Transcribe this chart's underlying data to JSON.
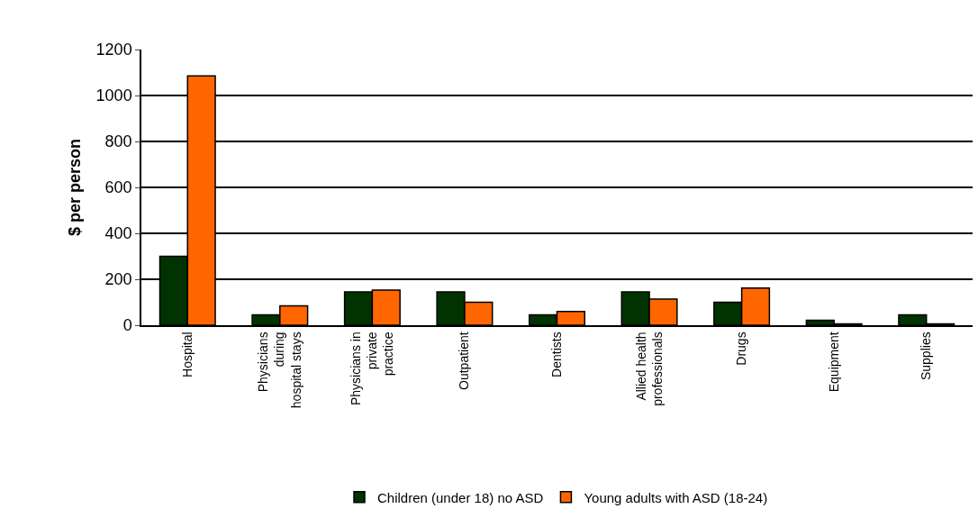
{
  "chart_data": {
    "type": "bar",
    "ylabel": "$ per person",
    "categories": [
      "Hospital",
      "Physicians during hospital stays",
      "Physicians in private practice",
      "Outpatient",
      "Dentists",
      "Allied health professionals",
      "Drugs",
      "Equipment",
      "Supplies"
    ],
    "series": [
      {
        "name": "Children (under 18) no ASD",
        "color": "#003300",
        "values": [
          300,
          45,
          145,
          145,
          45,
          145,
          100,
          22,
          45
        ]
      },
      {
        "name": "Young adults with ASD (18-24)",
        "color": "#ff6600",
        "values": [
          1085,
          84,
          153,
          100,
          60,
          114,
          162,
          6,
          6
        ]
      }
    ],
    "ylim": [
      0,
      1200
    ],
    "yticks": [
      0,
      200,
      400,
      600,
      800,
      1000,
      1200
    ],
    "grid": "y",
    "legend": "bottom"
  }
}
